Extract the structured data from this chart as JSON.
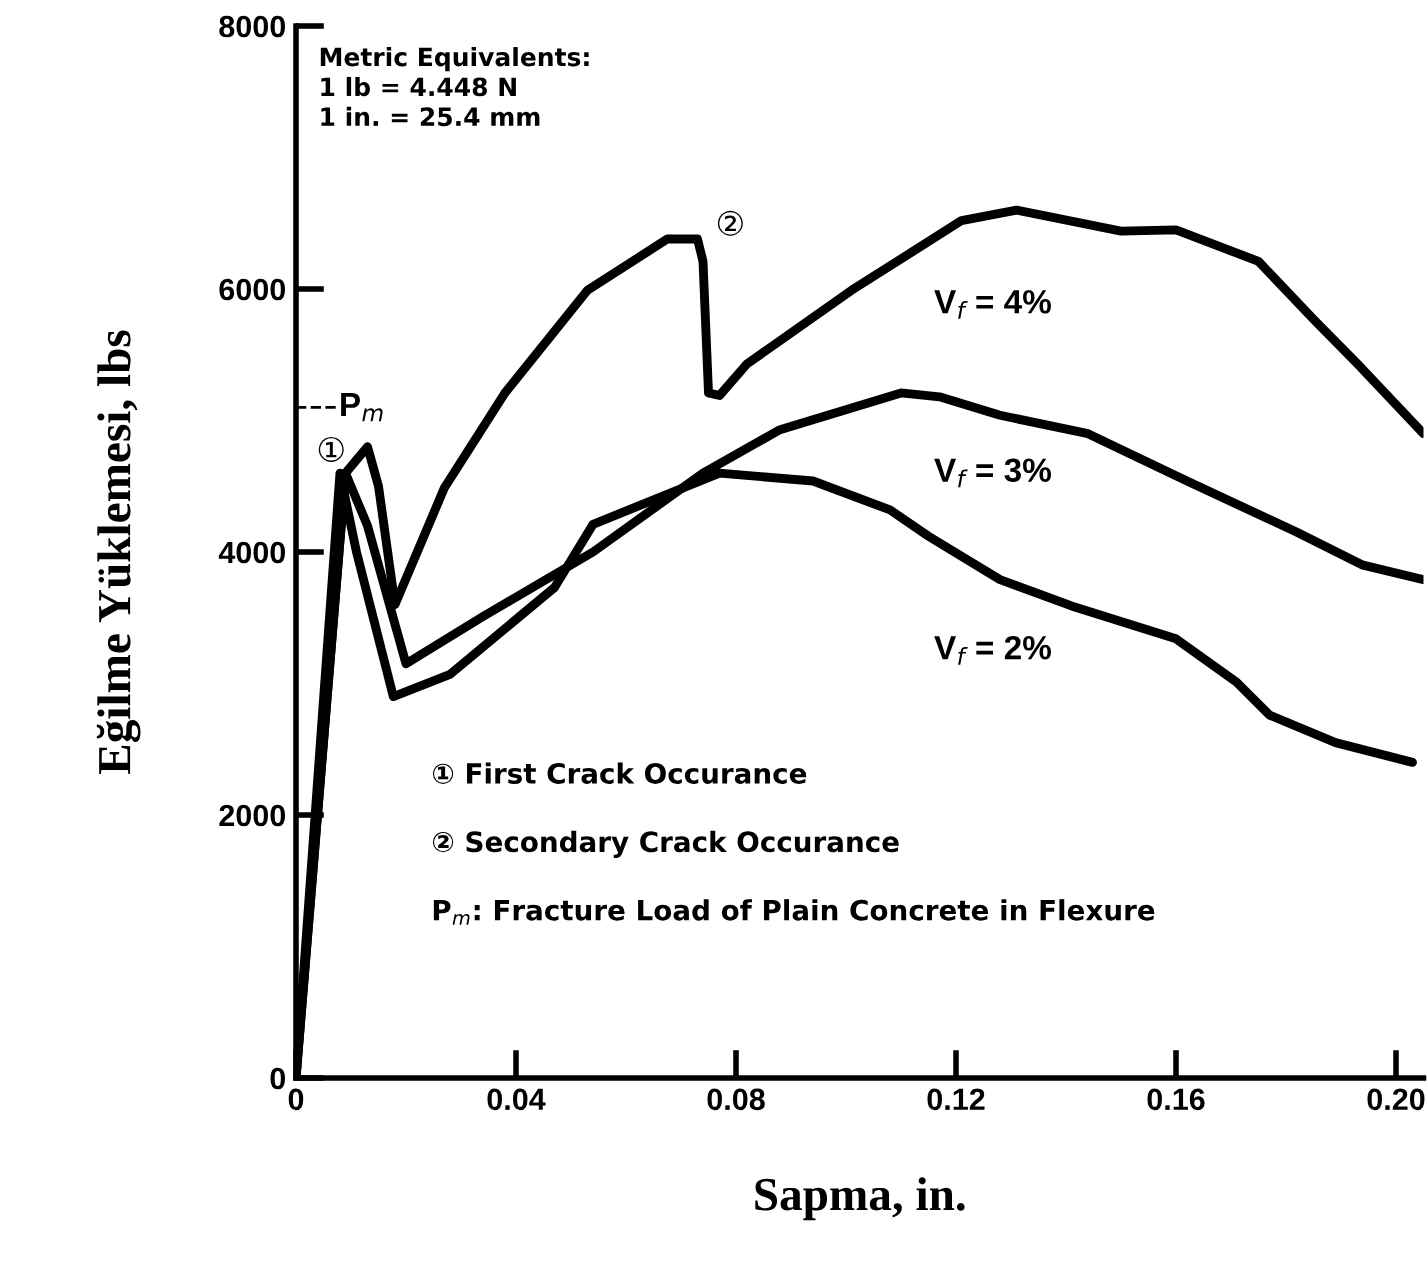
{
  "chart_data": {
    "type": "line",
    "xlabel": "Sapma, in.",
    "ylabel": "Eğilme Yüklemesi, lbs",
    "xlim": [
      0,
      0.205
    ],
    "ylim": [
      0,
      8000
    ],
    "xticks": [
      0,
      0.04,
      0.08,
      0.12,
      0.16,
      {
        "value": 0.2,
        "label": "0.20"
      }
    ],
    "yticks": [
      0,
      2000,
      4000,
      6000,
      8000
    ],
    "grid": false,
    "legend": false,
    "marker": "none",
    "line_style": "solid",
    "series": [
      {
        "name": "V$_{f}$ = 4%",
        "color": "#000000",
        "x": [
          0,
          0.009,
          0.011,
          0.013,
          0.015,
          0.018,
          0.027,
          0.038,
          0.053,
          0.0675,
          0.073,
          0.074,
          0.075,
          0.077,
          0.082,
          0.101,
          0.121,
          0.131,
          0.15,
          0.16,
          0.175,
          0.185,
          0.193,
          0.205
        ],
        "values": [
          0,
          4600,
          4700,
          4800,
          4500,
          3600,
          4490,
          5210,
          5990,
          6380,
          6380,
          6210,
          5210,
          5190,
          5430,
          5990,
          6520,
          6600,
          6440,
          6450,
          6210,
          5770,
          5430,
          4900
        ]
      },
      {
        "name": "V$_{f}$ = 3%",
        "color": "#000000",
        "x": [
          0,
          0.009,
          0.013,
          0.02,
          0.034,
          0.054,
          0.074,
          0.088,
          0.11,
          0.117,
          0.128,
          0.144,
          0.162,
          0.182,
          0.194,
          0.205
        ],
        "values": [
          0,
          4600,
          4200,
          3150,
          3510,
          4000,
          4600,
          4930,
          5210,
          5180,
          5040,
          4900,
          4540,
          4150,
          3900,
          3790
        ]
      },
      {
        "name": "V$_{f}$ = 2%",
        "color": "#000000",
        "x": [
          0,
          0.008,
          0.011,
          0.0177,
          0.028,
          0.047,
          0.054,
          0.077,
          0.094,
          0.108,
          0.115,
          0.128,
          0.141,
          0.16,
          0.171,
          0.177,
          0.189,
          0.203
        ],
        "values": [
          0,
          4600,
          4000,
          2900,
          3070,
          3730,
          4210,
          4600,
          4540,
          4320,
          4120,
          3790,
          3590,
          3340,
          3010,
          2760,
          2550,
          2400
        ]
      }
    ],
    "ref_lines": [
      {
        "axis": "y",
        "value": 5100,
        "label": "P$_{m}$",
        "color": "#000000",
        "line_style": "dashed"
      }
    ],
    "annotations": [
      "①",
      "②",
      "Metric Equivalents:\n1 lb = 4.448 N\n1 in. = 25.4 mm",
      "① First Crack Occurance",
      "② Secondary Crack Occurance",
      "P$_{m}$: Fracture Load of Plain Concrete in Flexure"
    ]
  }
}
